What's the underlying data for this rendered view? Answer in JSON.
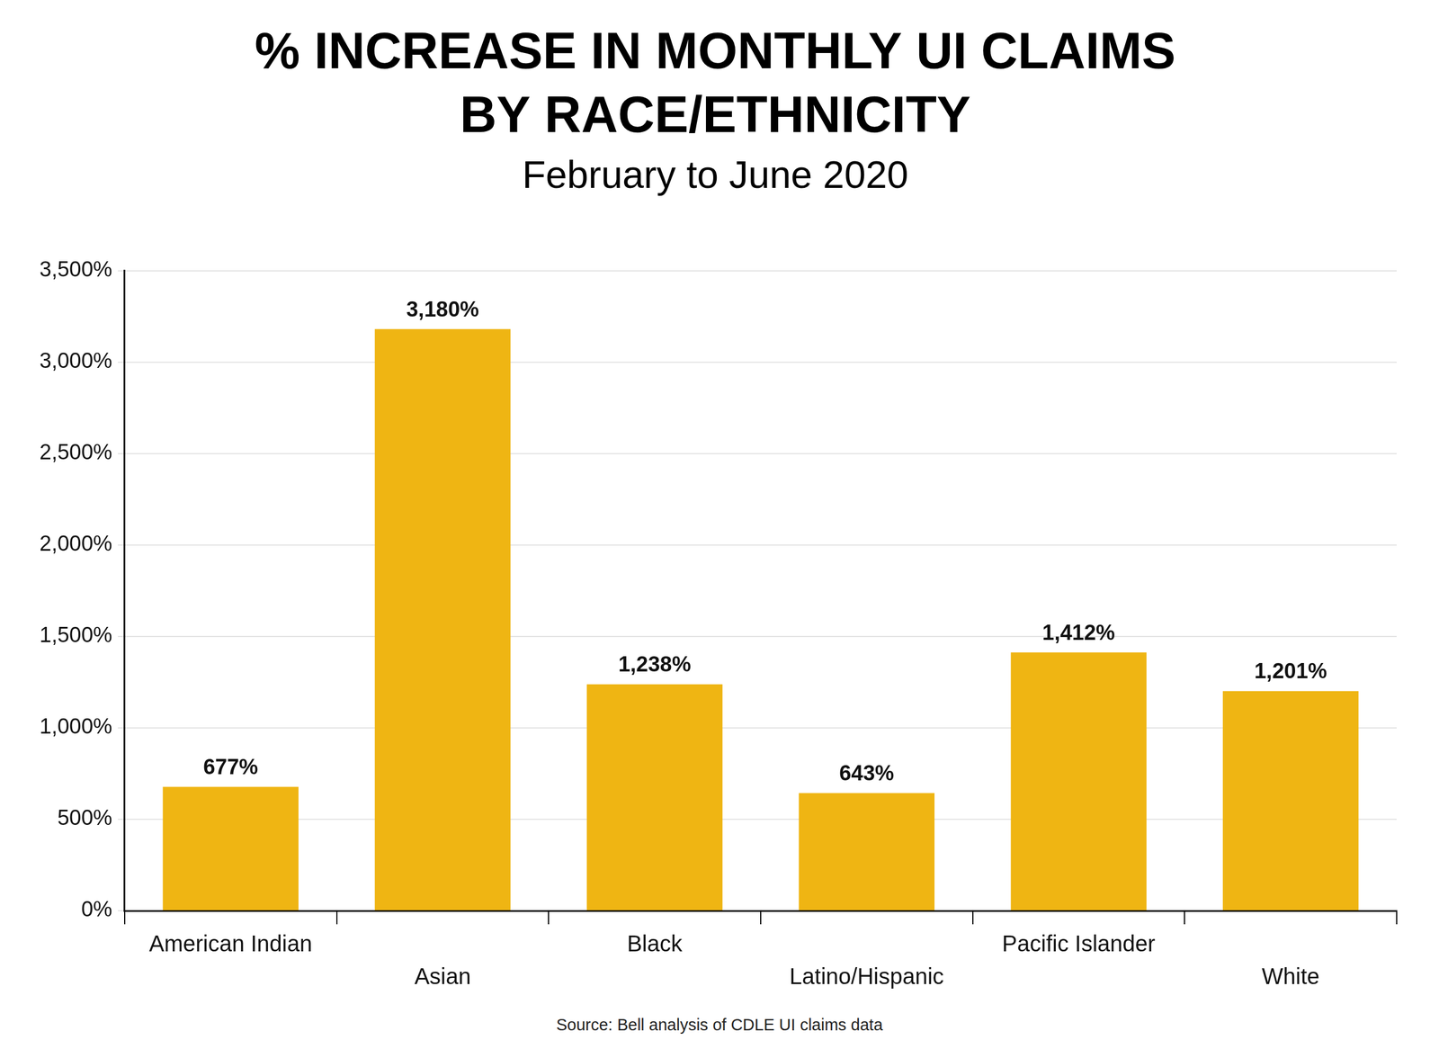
{
  "chart_data": {
    "type": "bar",
    "title": [
      "% INCREASE IN MONTHLY UI CLAIMS",
      "BY RACE/ETHNICITY"
    ],
    "subtitle": "February to June 2020",
    "source": "Source: Bell analysis of CDLE UI claims data",
    "categories": [
      "American Indian",
      "Asian",
      "Black",
      "Latino/Hispanic",
      "Pacific Islander",
      "White"
    ],
    "values": [
      677,
      3180,
      1238,
      643,
      1412,
      1201
    ],
    "value_labels": [
      "677%",
      "3,180%",
      "1,238%",
      "643%",
      "1,412%",
      "1,201%"
    ],
    "color": "#efb513",
    "ylim": [
      0,
      3500
    ],
    "yticks": [
      {
        "value": 0,
        "label": "0%"
      },
      {
        "value": 500,
        "label": "500%"
      },
      {
        "value": 1000,
        "label": "1,000%"
      },
      {
        "value": 1500,
        "label": "1,500%"
      },
      {
        "value": 2000,
        "label": "2,000%"
      },
      {
        "value": 2500,
        "label": "2,500%"
      },
      {
        "value": 3000,
        "label": "3,000%"
      },
      {
        "value": 3500,
        "label": "3,500%"
      }
    ],
    "grid": true,
    "data_labels": true
  }
}
